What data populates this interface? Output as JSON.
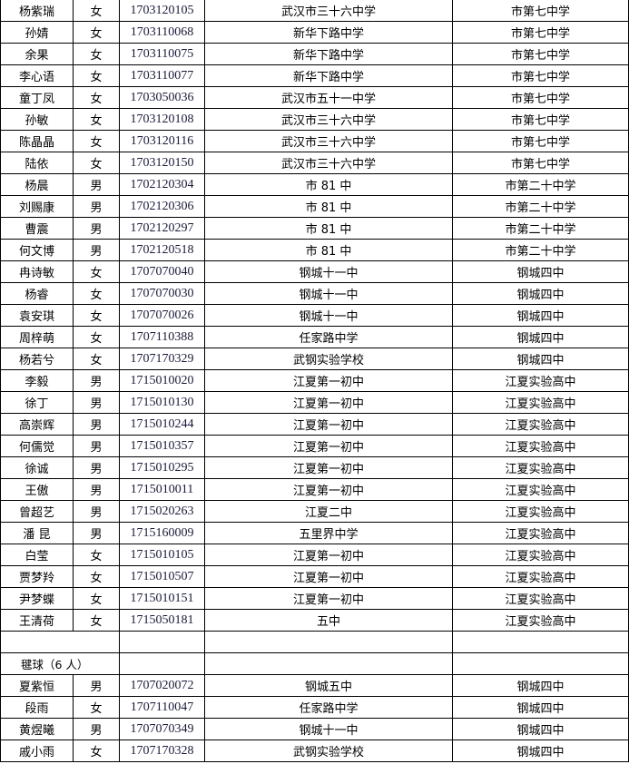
{
  "rows_a": [
    [
      "杨紫瑞",
      "女",
      "1703120105",
      "武汉市三十六中学",
      "市第七中学"
    ],
    [
      "孙婧",
      "女",
      "1703110068",
      "新华下路中学",
      "市第七中学"
    ],
    [
      "余果",
      "女",
      "1703110075",
      "新华下路中学",
      "市第七中学"
    ],
    [
      "李心语",
      "女",
      "1703110077",
      "新华下路中学",
      "市第七中学"
    ],
    [
      "童丁凤",
      "女",
      "1703050036",
      "武汉市五十一中学",
      "市第七中学"
    ],
    [
      "孙敏",
      "女",
      "1703120108",
      "武汉市三十六中学",
      "市第七中学"
    ],
    [
      "陈晶晶",
      "女",
      "1703120116",
      "武汉市三十六中学",
      "市第七中学"
    ],
    [
      "陆依",
      "女",
      "1703120150",
      "武汉市三十六中学",
      "市第七中学"
    ],
    [
      "杨晨",
      "男",
      "1702120304",
      "市 81 中",
      "市第二十中学"
    ],
    [
      "刘赐康",
      "男",
      "1702120306",
      "市 81 中",
      "市第二十中学"
    ],
    [
      "曹震",
      "男",
      "1702120297",
      "市 81 中",
      "市第二十中学"
    ],
    [
      "何文博",
      "男",
      "1702120518",
      "市 81 中",
      "市第二十中学"
    ],
    [
      "冉诗敏",
      "女",
      "1707070040",
      "钢城十一中",
      "钢城四中"
    ],
    [
      "杨睿",
      "女",
      "1707070030",
      "钢城十一中",
      "钢城四中"
    ],
    [
      "袁安琪",
      "女",
      "1707070026",
      "钢城十一中",
      "钢城四中"
    ],
    [
      "周梓萌",
      "女",
      "1707110388",
      "任家路中学",
      "钢城四中"
    ],
    [
      "杨若兮",
      "女",
      "1707170329",
      "武钢实验学校",
      "钢城四中"
    ],
    [
      "李毅",
      "男",
      "1715010020",
      "江夏第一初中",
      "江夏实验高中"
    ],
    [
      "徐丁",
      "男",
      "1715010130",
      "江夏第一初中",
      "江夏实验高中"
    ],
    [
      "高崇辉",
      "男",
      "1715010244",
      "江夏第一初中",
      "江夏实验高中"
    ],
    [
      "何儒觉",
      "男",
      "1715010357",
      "江夏第一初中",
      "江夏实验高中"
    ],
    [
      "徐诚",
      "男",
      "1715010295",
      "江夏第一初中",
      "江夏实验高中"
    ],
    [
      "王傲",
      "男",
      "1715010011",
      "江夏第一初中",
      "江夏实验高中"
    ],
    [
      "曾超艺",
      "男",
      "1715020263",
      "江夏二中",
      "江夏实验高中"
    ],
    [
      "潘 昆",
      "男",
      "1715160009",
      "五里界中学",
      "江夏实验高中"
    ],
    [
      "白莹",
      "女",
      "1715010105",
      "江夏第一初中",
      "江夏实验高中"
    ],
    [
      "贾梦羚",
      "女",
      "1715010507",
      "江夏第一初中",
      "江夏实验高中"
    ],
    [
      "尹梦蝶",
      "女",
      "1715010151",
      "江夏第一初中",
      "江夏实验高中"
    ],
    [
      "王清荷",
      "女",
      "1715050181",
      "五中",
      "江夏实验高中"
    ]
  ],
  "section": {
    "label": "毽球（6 人）"
  },
  "rows_b": [
    [
      "夏紫恒",
      "男",
      "1707020072",
      "钢城五中",
      "钢城四中"
    ],
    [
      "段雨",
      "女",
      "1707110047",
      "任家路中学",
      "钢城四中"
    ],
    [
      "黄煜曦",
      "男",
      "1707070349",
      "钢城十一中",
      "钢城四中"
    ],
    [
      "戚小雨",
      "女",
      "1707170328",
      "武钢实验学校",
      "钢城四中"
    ]
  ]
}
